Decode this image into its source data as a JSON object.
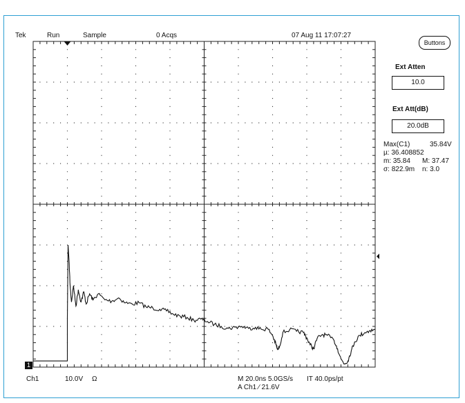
{
  "colors": {
    "frame": "#2d9fd3",
    "trace": "#111111",
    "grid": "#222222",
    "background": "#ffffff"
  },
  "header": {
    "brand": "Tek",
    "run_state": "Run",
    "mode": "Sample",
    "acqs": "0 Acqs",
    "datetime": "07 Aug 11 17:07:27"
  },
  "right_panel": {
    "buttons_label": "Buttons",
    "ext_atten_label": "Ext Atten",
    "ext_atten_value": "10.0",
    "ext_att_db_label": "Ext Att(dB)",
    "ext_att_db_value": "20.0dB",
    "meas_title": "Max(C1)",
    "meas_value": "35.84V",
    "mean_line": "µ: 36.408852",
    "min_label": "m: 35.84",
    "max_label": "M: 37.47",
    "std_label": "σ: 822.9m",
    "n_label": "n: 3.0"
  },
  "footer": {
    "ch1": "Ch1",
    "ch1_scale": "10.0V",
    "ch1_coupling": "Ω",
    "timebase": "M 20.0ns 5.0GS/s",
    "record": "IT 40.0ps/pt",
    "trigger": "A Ch1 ∕ 21.6V",
    "ch1_marker": "1"
  },
  "trace_data": {
    "x_divs": 10,
    "y_divs": 8,
    "trigger_div": 1.0,
    "points": [
      [
        0.0,
        0.15
      ],
      [
        0.95,
        0.15
      ],
      [
        1.0,
        0.15
      ],
      [
        1.0,
        1.2
      ],
      [
        1.02,
        3.0
      ],
      [
        1.05,
        2.6
      ],
      [
        1.08,
        2.0
      ],
      [
        1.12,
        1.6
      ],
      [
        1.18,
        2.0
      ],
      [
        1.25,
        1.5
      ],
      [
        1.32,
        1.9
      ],
      [
        1.4,
        1.6
      ],
      [
        1.48,
        1.85
      ],
      [
        1.55,
        1.55
      ],
      [
        1.65,
        1.8
      ],
      [
        1.75,
        1.65
      ],
      [
        1.9,
        1.8
      ],
      [
        2.1,
        1.65
      ],
      [
        2.3,
        1.62
      ],
      [
        2.5,
        1.7
      ],
      [
        2.7,
        1.58
      ],
      [
        2.9,
        1.55
      ],
      [
        3.1,
        1.58
      ],
      [
        3.3,
        1.48
      ],
      [
        3.5,
        1.45
      ],
      [
        3.7,
        1.42
      ],
      [
        3.9,
        1.38
      ],
      [
        4.1,
        1.3
      ],
      [
        4.3,
        1.25
      ],
      [
        4.5,
        1.22
      ],
      [
        4.7,
        1.15
      ],
      [
        4.9,
        1.18
      ],
      [
        5.1,
        1.12
      ],
      [
        5.3,
        1.05
      ],
      [
        5.5,
        1.0
      ],
      [
        5.7,
        0.95
      ],
      [
        5.9,
        0.98
      ],
      [
        6.1,
        1.0
      ],
      [
        6.3,
        0.95
      ],
      [
        6.5,
        0.98
      ],
      [
        6.7,
        0.92
      ],
      [
        6.85,
        0.95
      ],
      [
        7.0,
        0.78
      ],
      [
        7.1,
        0.55
      ],
      [
        7.15,
        0.42
      ],
      [
        7.2,
        0.5
      ],
      [
        7.3,
        0.85
      ],
      [
        7.5,
        0.92
      ],
      [
        7.7,
        0.88
      ],
      [
        7.9,
        0.85
      ],
      [
        8.0,
        0.72
      ],
      [
        8.1,
        0.55
      ],
      [
        8.2,
        0.45
      ],
      [
        8.3,
        0.7
      ],
      [
        8.45,
        0.8
      ],
      [
        8.6,
        0.78
      ],
      [
        8.8,
        0.65
      ],
      [
        8.9,
        0.45
      ],
      [
        9.0,
        0.2
      ],
      [
        9.1,
        0.08
      ],
      [
        9.2,
        0.15
      ],
      [
        9.3,
        0.4
      ],
      [
        9.4,
        0.62
      ],
      [
        9.55,
        0.78
      ],
      [
        9.7,
        0.85
      ],
      [
        9.85,
        0.9
      ],
      [
        10.0,
        0.92
      ]
    ]
  }
}
